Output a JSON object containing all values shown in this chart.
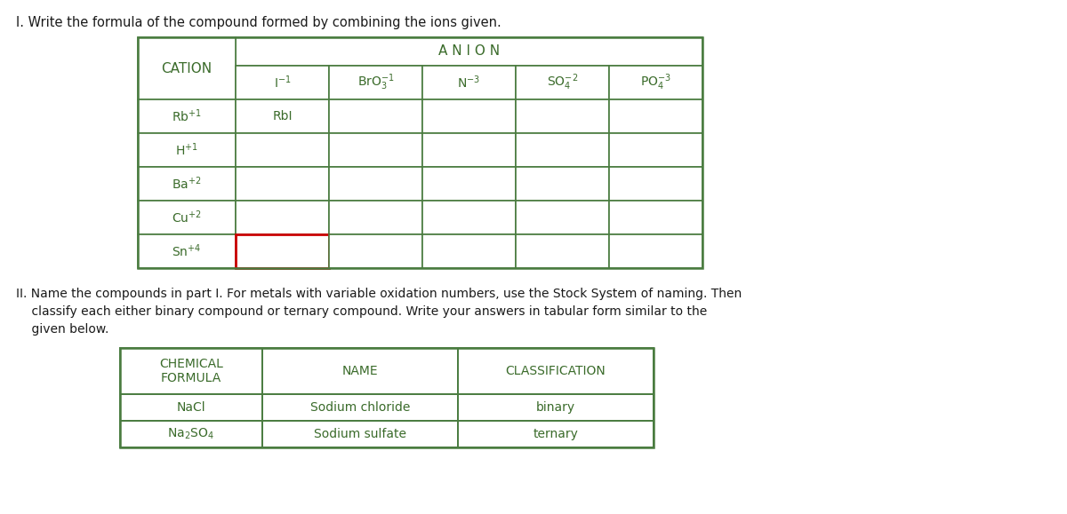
{
  "bg_color": "#ffffff",
  "title1": "I. Write the formula of the compound formed by combining the ions given.",
  "title2_lines": [
    "II. Name the compounds in part I. For metals with variable oxidation numbers, use the Stock System of naming. Then",
    "    classify each either binary compound or ternary compound. Write your answers in tabular form similar to the",
    "    given below."
  ],
  "table1": {
    "anion_header": "A N I O N",
    "cation_label": "CATION",
    "anion_cols": [
      "I$^{-1}$",
      "BrO$_3^{-1}$",
      "N$^{-3}$",
      "SO$_4^{-2}$",
      "PO$_4^{-3}$"
    ],
    "cations": [
      "Rb$^{+1}$",
      "H$^{+1}$",
      "Ba$^{+2}$",
      "Cu$^{+2}$",
      "Sn$^{+4}$"
    ],
    "cell_data": [
      [
        "RbI",
        "",
        "",
        "",
        ""
      ],
      [
        "",
        "",
        "",
        "",
        ""
      ],
      [
        "",
        "",
        "",
        "",
        ""
      ],
      [
        "",
        "",
        "",
        "",
        ""
      ],
      [
        "",
        "",
        "",
        "",
        ""
      ]
    ],
    "highlight_row": 4,
    "highlight_col": 0,
    "highlight_color": "#cc0000",
    "border_color": "#4a7c40",
    "text_color": "#3a6b2a"
  },
  "table2": {
    "headers": [
      "CHEMICAL\nFORMULA",
      "NAME",
      "CLASSIFICATION"
    ],
    "rows": [
      [
        "NaCl",
        "Sodium chloride",
        "binary"
      ],
      [
        "Na$_2$SO$_4$",
        "Sodium sulfate",
        "ternary"
      ]
    ],
    "border_color": "#4a7c40",
    "text_color": "#3a6b2a"
  }
}
